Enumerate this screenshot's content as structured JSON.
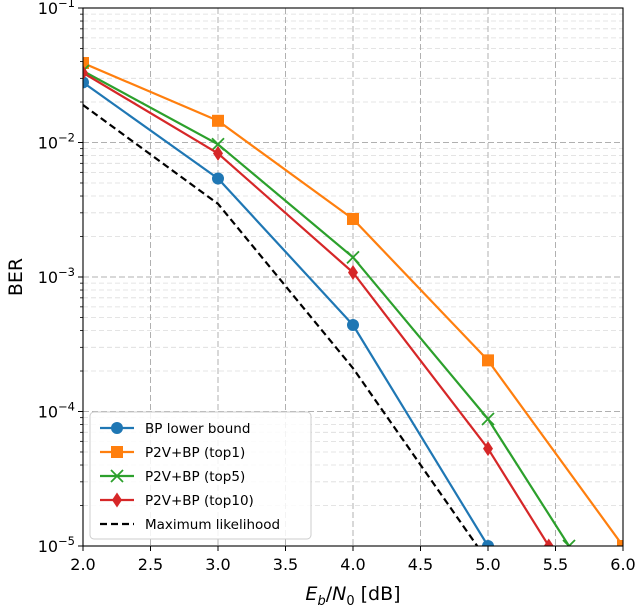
{
  "chart_data": {
    "type": "line",
    "xlabel": "E_b/N_0 [dB]",
    "xlabel_parts": {
      "main": "E",
      "sub": "b",
      "slash": "/",
      "main2": "N",
      "sub2": "0",
      "unit": " [dB]"
    },
    "ylabel": "BER",
    "xlim": [
      2.0,
      6.0
    ],
    "ylim": [
      1e-05,
      0.1
    ],
    "yscale": "log",
    "grid": true,
    "grid_style": "dashed",
    "legend_position": "lower-left",
    "x_ticks": [
      "2.0",
      "2.5",
      "3.0",
      "3.5",
      "4.0",
      "4.5",
      "5.0",
      "5.5",
      "6.0"
    ],
    "y_ticks": [
      {
        "base": "10",
        "exp": "−5"
      },
      {
        "base": "10",
        "exp": "−4"
      },
      {
        "base": "10",
        "exp": "−3"
      },
      {
        "base": "10",
        "exp": "−2"
      },
      {
        "base": "10",
        "exp": "−1"
      }
    ],
    "series": [
      {
        "name": "BP lower bound",
        "color": "#1f77b4",
        "marker": "circle",
        "dash": false,
        "x": [
          2,
          3,
          4,
          5
        ],
        "y": [
          0.028,
          0.0054,
          0.00044,
          1e-05
        ]
      },
      {
        "name": "P2V+BP (top1)",
        "color": "#ff7f0e",
        "marker": "square",
        "dash": false,
        "x": [
          2,
          3,
          4,
          5,
          6
        ],
        "y": [
          0.039,
          0.0145,
          0.0027,
          0.00024,
          1e-05
        ]
      },
      {
        "name": "P2V+BP (top5)",
        "color": "#2ca02c",
        "marker": "x",
        "dash": false,
        "x": [
          2,
          3,
          4,
          5,
          5.6
        ],
        "y": [
          0.034,
          0.0097,
          0.0014,
          8.8e-05,
          1e-05
        ]
      },
      {
        "name": "P2V+BP (top10)",
        "color": "#d62728",
        "marker": "diamond",
        "dash": false,
        "x": [
          2,
          3,
          4,
          5,
          5.45
        ],
        "y": [
          0.033,
          0.0083,
          0.00108,
          5.3e-05,
          1e-05
        ]
      },
      {
        "name": "Maximum likelihood",
        "color": "#000000",
        "marker": "none",
        "dash": true,
        "x": [
          2,
          3,
          4,
          4.92
        ],
        "y": [
          0.019,
          0.0035,
          0.00021,
          1e-05
        ]
      }
    ]
  }
}
